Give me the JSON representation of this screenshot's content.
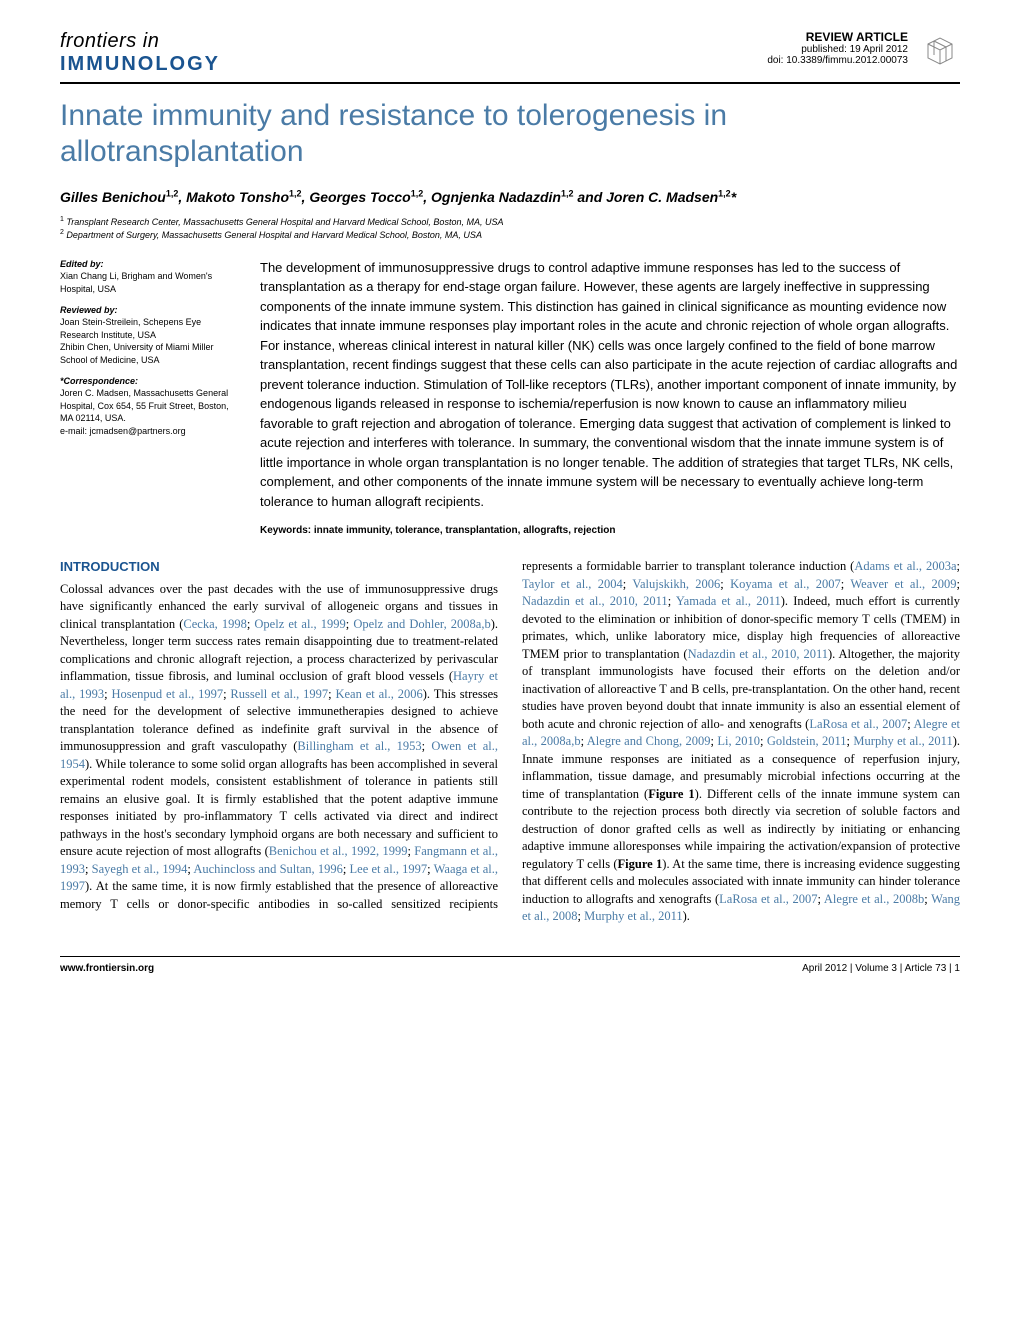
{
  "journal": {
    "line1": "frontiers in",
    "line2": "IMMUNOLOGY"
  },
  "article_meta": {
    "type": "REVIEW ARTICLE",
    "published": "published: 19 April 2012",
    "doi": "doi: 10.3389/fimmu.2012.00073"
  },
  "title": "Innate immunity and resistance to tolerogenesis in allotransplantation",
  "authors_html": "Gilles Benichou<span class='sup'>1,2</span>, Makoto Tonsho<span class='sup'>1,2</span>, Georges Tocco<span class='sup'>1,2</span>, Ognjenka Nadazdin<span class='sup'>1,2</span> and Joren C. Madsen<span class='sup'>1,2</span>*",
  "affiliations": [
    {
      "num": "1",
      "text": "Transplant Research Center, Massachusetts General Hospital and Harvard Medical School, Boston, MA, USA"
    },
    {
      "num": "2",
      "text": "Department of Surgery, Massachusetts General Hospital and Harvard Medical School, Boston, MA, USA"
    }
  ],
  "sidebar": {
    "edited_by_head": "Edited by:",
    "edited_by": "Xian Chang Li, Brigham and Women's Hospital, USA",
    "reviewed_by_head": "Reviewed by:",
    "reviewed_by": "Joan Stein-Streilein, Schepens Eye Research Institute, USA\nZhibin Chen, University of Miami Miller School of Medicine, USA",
    "correspondence_head": "*Correspondence:",
    "correspondence": "Joren C. Madsen, Massachusetts General Hospital, Cox 654, 55 Fruit Street, Boston, MA 02114, USA.\ne-mail: jcmadsen@partners.org"
  },
  "abstract": "The development of immunosuppressive drugs to control adaptive immune responses has led to the success of transplantation as a therapy for end-stage organ failure. However, these agents are largely ineffective in suppressing components of the innate immune system. This distinction has gained in clinical significance as mounting evidence now indicates that innate immune responses play important roles in the acute and chronic rejection of whole organ allografts. For instance, whereas clinical interest in natural killer (NK) cells was once largely confined to the field of bone marrow transplantation, recent findings suggest that these cells can also participate in the acute rejection of cardiac allografts and prevent tolerance induction. Stimulation of Toll-like receptors (TLRs), another important component of innate immunity, by endogenous ligands released in response to ischemia/reperfusion is now known to cause an inflammatory milieu favorable to graft rejection and abrogation of tolerance. Emerging data suggest that activation of complement is linked to acute rejection and interferes with tolerance. In summary, the conventional wisdom that the innate immune system is of little importance in whole organ transplantation is no longer tenable. The addition of strategies that target TLRs, NK cells, complement, and other components of the innate immune system will be necessary to eventually achieve long-term tolerance to human allograft recipients.",
  "keywords": "Keywords: innate immunity, tolerance, transplantation, allografts, rejection",
  "introduction_head": "INTRODUCTION",
  "body_para1": "Colossal advances over the past decades with the use of immunosuppressive drugs have significantly enhanced the early survival of allogeneic organs and tissues in clinical transplantation (<span class='cite'>Cecka, 1998</span>; <span class='cite'>Opelz et al., 1999</span>; <span class='cite'>Opelz and Dohler, 2008a,b</span>). Nevertheless, longer term success rates remain disappointing due to treatment-related complications and chronic allograft rejection, a process characterized by perivascular inflammation, tissue fibrosis, and luminal occlusion of graft blood vessels (<span class='cite'>Hayry et al., 1993</span>; <span class='cite'>Hosenpud et al., 1997</span>; <span class='cite'>Russell et al., 1997</span>; <span class='cite'>Kean et al., 2006</span>). This stresses the need for the development of selective immunetherapies designed to achieve transplantation tolerance defined as indefinite graft survival in the absence of immunosuppression and graft vasculopathy (<span class='cite'>Billingham et al., 1953</span>; <span class='cite'>Owen et al., 1954</span>). While tolerance to some solid organ allografts has been accomplished in several experimental rodent models, consistent establishment of tolerance in patients still remains an elusive goal. It is firmly established that the potent adaptive immune responses initiated by pro-inflammatory T cells activated via direct and indirect pathways in the host's secondary lymphoid organs are both necessary and sufficient to ensure acute rejection of most allografts (<span class='cite'>Benichou et al., 1992, 1999</span>; <span class='cite'>Fangmann et al., 1993</span>; <span class='cite'>Sayegh et al., 1994</span>; <span class='cite'>Auchincloss and Sultan, 1996</span>; <span class='cite'>Lee et al., 1997</span>; <span class='cite'>Waaga et al., 1997</span>). At the same time, it is now firmly established that the presence of alloreactive memory T cells or donor-specific antibodies in so-called sensitized recipients represents a formidable barrier to transplant tolerance induction (<span class='cite'>Adams et al., 2003a</span>; <span class='cite'>Taylor et al., 2004</span>; <span class='cite'>Valujskikh, 2006</span>; <span class='cite'>Koyama et al., 2007</span>; <span class='cite'>Weaver et al., 2009</span>; <span class='cite'>Nadazdin et al., 2010, 2011</span>; <span class='cite'>Yamada et al., 2011</span>). Indeed, much effort is currently devoted to the elimination or inhibition of donor-specific memory T cells (TMEM) in primates, which, unlike laboratory mice, display high frequencies of alloreactive TMEM prior to transplantation (<span class='cite'>Nadazdin et al., 2010, 2011</span>). Altogether, the majority of transplant immunologists have focused their efforts on the deletion and/or inactivation of alloreactive T and B cells, pre-transplantation. On the other hand, recent studies have proven beyond doubt that innate immunity is also an essential element of both acute and chronic rejection of allo- and xenografts (<span class='cite'>LaRosa et al., 2007</span>; <span class='cite'>Alegre et al., 2008a,b</span>; <span class='cite'>Alegre and Chong, 2009</span>; <span class='cite'>Li, 2010</span>; <span class='cite'>Goldstein, 2011</span>; <span class='cite'>Murphy et al., 2011</span>). Innate immune responses are initiated as a consequence of reperfusion injury, inflammation, tissue damage, and presumably microbial infections occurring at the time of transplantation (<b>Figure 1</b>). Different cells of the innate immune system can contribute to the rejection process both directly via secretion of soluble factors and destruction of donor grafted cells as well as indirectly by initiating or enhancing adaptive immune alloresponses while impairing the activation/expansion of protective regulatory T cells (<b>Figure 1</b>). At the same time, there is increasing evidence suggesting that different cells and molecules associated with innate immunity can hinder tolerance induction to allografts and xenografts (<span class='cite'>LaRosa et al., 2007</span>; <span class='cite'>Alegre et al., 2008b</span>; <span class='cite'>Wang et al., 2008</span>; <span class='cite'>Murphy et al., 2011</span>).",
  "footer": {
    "left": "www.frontiersin.org",
    "right": "April 2012 | Volume 3 | Article 73 | 1"
  },
  "colors": {
    "accent": "#4a7ba6",
    "dark_blue": "#1a5490"
  }
}
